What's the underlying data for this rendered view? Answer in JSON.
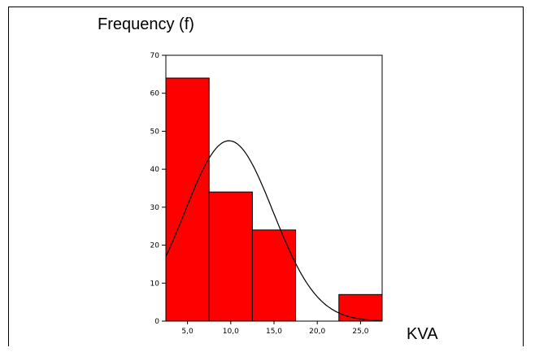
{
  "chart_data": {
    "type": "bar",
    "title": "",
    "ylabel": "Frequency (f)",
    "xlabel": "KVA",
    "xlim": [
      2.5,
      27.5
    ],
    "ylim": [
      0,
      70
    ],
    "bin_width": 5,
    "bins": [
      {
        "center": 5.0,
        "value": 64
      },
      {
        "center": 10.0,
        "value": 34
      },
      {
        "center": 15.0,
        "value": 24
      },
      {
        "center": 20.0,
        "value": 0
      },
      {
        "center": 25.0,
        "value": 7
      }
    ],
    "x_ticks": [
      "5,0",
      "10,0",
      "15,0",
      "20,0",
      "25,0"
    ],
    "x_tick_values": [
      5,
      10,
      15,
      20,
      25
    ],
    "y_ticks": [
      "0",
      "10",
      "20",
      "30",
      "40",
      "50",
      "60",
      "70"
    ],
    "y_tick_values": [
      0,
      10,
      20,
      30,
      40,
      50,
      60,
      70
    ],
    "normal_curve": {
      "mean": 9.8,
      "sd": 5.1,
      "peak": 47.5
    },
    "bar_color": "#ff0000",
    "grid": false,
    "legend": "none"
  }
}
